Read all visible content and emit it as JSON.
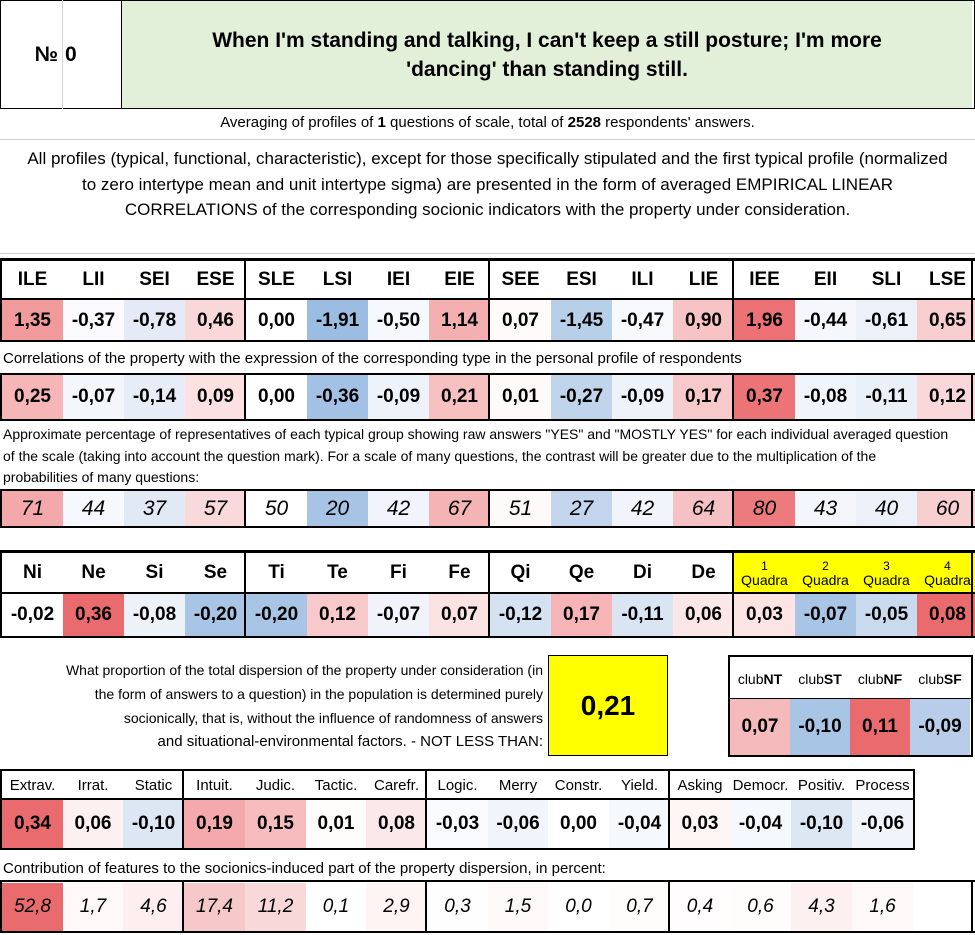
{
  "header": {
    "number_label": "№",
    "number": "0",
    "question": "When I'm standing and talking, I can't keep a still posture; I'm more 'dancing' than standing still."
  },
  "averaging": {
    "prefix": "Averaging of profiles of ",
    "questions_count": "1",
    "middle": " questions of scale, total of ",
    "respondents": "2528",
    "suffix": " respondents' answers."
  },
  "description": "All profiles (typical, functional, characteristic), except for those specifically stipulated and the first typical profile (normalized to zero intertype mean and unit intertype sigma) are presented in the form of averaged EMPIRICAL LINEAR CORRELATIONS of the corresponding socionic indicators with the property under consideration.",
  "types": {
    "headers": [
      "ILE",
      "LII",
      "SEI",
      "ESE",
      "SLE",
      "LSI",
      "IEI",
      "EIE",
      "SEE",
      "ESI",
      "ILI",
      "LIE",
      "IEE",
      "EII",
      "SLI",
      "LSE"
    ],
    "values": [
      "1,35",
      "-0,37",
      "-0,78",
      "0,46",
      "0,00",
      "-1,91",
      "-0,50",
      "1,14",
      "0,07",
      "-1,45",
      "-0,47",
      "0,90",
      "1,96",
      "-0,44",
      "-0,61",
      "0,65"
    ],
    "colors": [
      "#f19a9c",
      "#fbfbff",
      "#e4ebf6",
      "#fad8d9",
      "#ffffff",
      "#9cbde2",
      "#f6f8fc",
      "#f4afb0",
      "#fffbfb",
      "#b8cfea",
      "#f7f9fd",
      "#f7c3c4",
      "#eb7174",
      "#f4f7fc",
      "#ecf1f9",
      "#f9ced0"
    ]
  },
  "correlations": {
    "caption": "Correlations of the property with the expression of the corresponding type in the personal profile of respondents",
    "values": [
      "0,25",
      "-0,07",
      "-0,14",
      "0,09",
      "0,00",
      "-0,36",
      "-0,09",
      "0,21",
      "0,01",
      "-0,27",
      "-0,09",
      "0,17",
      "0,37",
      "-0,08",
      "-0,11",
      "0,12"
    ],
    "colors": [
      "#f6b5b7",
      "#f3f6fb",
      "#e6edf7",
      "#fbe1e2",
      "#ffffff",
      "#a2c1e4",
      "#eef3fa",
      "#f7c0c1",
      "#fffafa",
      "#c0d4ec",
      "#eef3fa",
      "#f8c9ca",
      "#ec7477",
      "#f0f4fb",
      "#eaf0f8",
      "#fad7d8"
    ]
  },
  "percentages": {
    "caption": "Approximate percentage of representatives of each typical group showing raw answers \"YES\" and \"MOSTLY YES\" for each individual averaged question of the scale (taking into account the question mark). For a scale of many questions, the contrast will be greater due to the multiplication of the probabilities of many questions:",
    "values": [
      "71",
      "44",
      "37",
      "57",
      "50",
      "20",
      "42",
      "67",
      "51",
      "27",
      "42",
      "64",
      "80",
      "43",
      "40",
      "60"
    ],
    "colors": [
      "#f3a9ab",
      "#f5f8fc",
      "#e1e9f5",
      "#fad9da",
      "#ffffff",
      "#a7c4e5",
      "#f1f5fb",
      "#f4b4b5",
      "#fffafa",
      "#c2d5ec",
      "#f1f5fb",
      "#f6c1c2",
      "#ed7b7e",
      "#f3f6fb",
      "#ecf1f9",
      "#f8cfd0"
    ]
  },
  "functions": {
    "headers": [
      "Ni",
      "Ne",
      "Si",
      "Se",
      "Ti",
      "Te",
      "Fi",
      "Fe",
      "Qi",
      "Qe",
      "Di",
      "De"
    ],
    "values": [
      "-0,02",
      "0,36",
      "-0,08",
      "-0,20",
      "-0,20",
      "0,12",
      "-0,07",
      "0,07",
      "-0,12",
      "0,17",
      "-0,11",
      "0,06"
    ],
    "colors": [
      "#ffffff",
      "#ea6b6e",
      "#edf2f9",
      "#a9c5e5",
      "#a9c5e5",
      "#f8c9cb",
      "#f0f4fa",
      "#fbe3e4",
      "#d5e2f2",
      "#f6b4b6",
      "#dae5f3",
      "#fce7e8"
    ]
  },
  "quadras": {
    "headers": [
      {
        "num": "1",
        "label": "Quadra"
      },
      {
        "num": "2",
        "label": "Quadra"
      },
      {
        "num": "3",
        "label": "Quadra"
      },
      {
        "num": "4",
        "label": "Quadra"
      }
    ],
    "values": [
      "0,03",
      "-0,07",
      "-0,05",
      "0,08"
    ],
    "colors": [
      "#fce4e5",
      "#a9c5e5",
      "#c9daef",
      "#ea6b6e"
    ],
    "header_color": "#ffff00"
  },
  "dispersion": {
    "text": "What proportion of the total dispersion of the property under consideration (in the form of answers to a question) in the population is determined purely socionically, that is, without the influence of randomness of answers",
    "text_last": "and situational-environmental factors. - NOT LESS THAN:",
    "value": "0,21",
    "value_bg": "#ffff00"
  },
  "clubs": {
    "headers": [
      {
        "prefix": "club",
        "suffix": "NT"
      },
      {
        "prefix": "club",
        "suffix": "ST"
      },
      {
        "prefix": "club",
        "suffix": "NF"
      },
      {
        "prefix": "club",
        "suffix": "SF"
      }
    ],
    "values": [
      "0,07",
      "-0,10",
      "0,11",
      "-0,09"
    ],
    "colors": [
      "#f5bbbc",
      "#a9c5e5",
      "#ea6b6e",
      "#b7cde9"
    ]
  },
  "features": {
    "headers": [
      "Extrav.",
      "Irrat.",
      "Static",
      "Intuit.",
      "Judic.",
      "Tactic.",
      "Carefr.",
      "Logic.",
      "Merry",
      "Constr.",
      "Yield.",
      "Asking",
      "Democr.",
      "Positiv.",
      "Process"
    ],
    "values": [
      "0,34",
      "0,06",
      "-0,10",
      "0,19",
      "0,15",
      "0,01",
      "0,08",
      "-0,03",
      "-0,06",
      "0,00",
      "-0,04",
      "0,03",
      "-0,04",
      "-0,10",
      "-0,06"
    ],
    "colors": [
      "#ea6b6e",
      "#fdf0f0",
      "#dde7f4",
      "#f4aaac",
      "#f6bcbe",
      "#fffcfc",
      "#fbe8e9",
      "#f8fafd",
      "#f1f5fb",
      "#ffffff",
      "#f5f8fc",
      "#fef5f5",
      "#f5f8fc",
      "#dde7f4",
      "#f1f5fb"
    ]
  },
  "contribution": {
    "caption": "Contribution of features to the socionics-induced part of the property dispersion, in percent:",
    "values": [
      "52,8",
      "1,7",
      "4,6",
      "17,4",
      "11,2",
      "0,1",
      "2,9",
      "0,3",
      "1,5",
      "0,0",
      "0,7",
      "0,4",
      "0,6",
      "4,3",
      "1,6"
    ],
    "colors": [
      "#ea6b6e",
      "#fef8f8",
      "#fdeff0",
      "#f7c8c9",
      "#f9d8d9",
      "#ffffff",
      "#fef4f4",
      "#fffefe",
      "#fef9f9",
      "#ffffff",
      "#fffcfc",
      "#fffdfd",
      "#fffcfc",
      "#fdf0f0",
      "#fef9f9"
    ]
  }
}
